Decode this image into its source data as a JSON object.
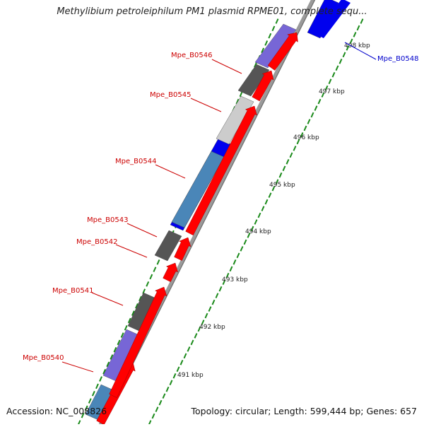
{
  "title": "Methylibium petroleiphilum PM1 plasmid RPME01, complete sequ...",
  "footer": {
    "accession": "Accession: NC_008826",
    "summary": "Topology: circular; Length: 599,444 bp; Genes: 657"
  },
  "colors": {
    "forward_cds": "#ff0000",
    "backbone": "#9a9a9a",
    "tick": "#1a8a1a",
    "label_red": "#cc0000",
    "label_blue": "#0000cc"
  },
  "ticks": [
    {
      "label": "491 kbp"
    },
    {
      "label": "492 kbp"
    },
    {
      "label": "493 kbp"
    },
    {
      "label": "494 kbp"
    },
    {
      "label": "495 kbp"
    },
    {
      "label": "496 kbp"
    },
    {
      "label": "497 kbp"
    },
    {
      "label": "498 kbp"
    }
  ],
  "gene_labels": [
    {
      "name": "Mpe_B0540",
      "color": "red"
    },
    {
      "name": "Mpe_B0541",
      "color": "red"
    },
    {
      "name": "Mpe_B0542",
      "color": "red"
    },
    {
      "name": "Mpe_B0543",
      "color": "red"
    },
    {
      "name": "Mpe_B0544",
      "color": "red"
    },
    {
      "name": "Mpe_B0545",
      "color": "red"
    },
    {
      "name": "Mpe_B0546",
      "color": "red"
    },
    {
      "name": "Mpe_B0548",
      "color": "blue"
    }
  ],
  "outer_ring_fills": [
    "#4a86b8",
    "#7766d6",
    "#555555",
    "#555555",
    "#0000ee",
    "#4a86b8",
    "#cccccc",
    "#555555",
    "#7766d6",
    "#0000ee"
  ]
}
